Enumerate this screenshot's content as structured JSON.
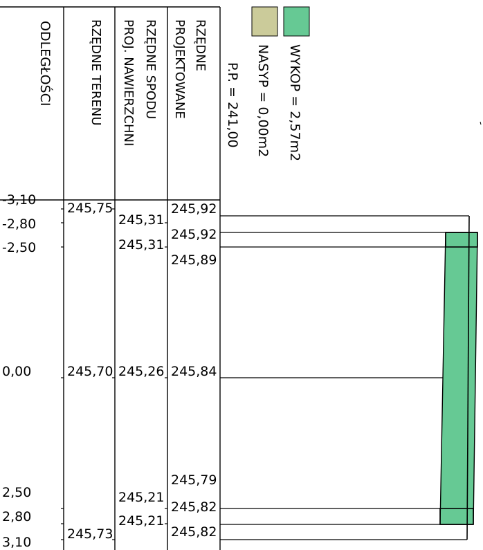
{
  "headers": {
    "distances": "ODLEGŁOŚCI",
    "terrain": "RZĘDNE TERENU",
    "subbase_line1": "RZĘDNE SPODU",
    "subbase_line2": "PROJ. NAWIERZCHNI",
    "design_line1": "RZĘDNE",
    "design_line2": "PROJEKTOWANE"
  },
  "reference_plane": "P.P. = 241,00",
  "legend": [
    {
      "label": "WYKOP = 2,57m2",
      "color": "#66c994"
    },
    {
      "label": "NASYP = 0,00m2",
      "color": "#cbcb9a"
    }
  ],
  "rows": [
    {
      "distance": "-3,10",
      "terrain": "245,75",
      "subbase": "",
      "design": "245,92"
    },
    {
      "distance": "-2,80",
      "terrain": "",
      "subbase": "245,31",
      "design": "245,92"
    },
    {
      "distance": "-2,50",
      "terrain": "",
      "subbase": "245,31",
      "design": "245,89"
    },
    {
      "distance": "0,00",
      "terrain": "245,70",
      "subbase": "245,26",
      "design": "245,84"
    },
    {
      "distance": "2,50",
      "terrain": "",
      "subbase": "245,21",
      "design": "245,79"
    },
    {
      "distance": "2,80",
      "terrain": "",
      "subbase": "245,21",
      "design": "245,82"
    },
    {
      "distance": "3,10",
      "terrain": "245,73",
      "subbase": "",
      "design": "245,82"
    }
  ]
}
